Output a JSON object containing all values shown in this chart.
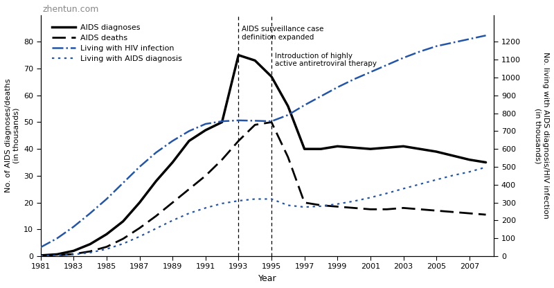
{
  "xlabel": "Year",
  "ylabel_left": "No. of AIDS diagnoses/deaths\n(in thousands)",
  "ylabel_right": "No. living with AIDS diagnosis/HIV infection\n(in thousands)",
  "watermark": "zhentun.com",
  "vline1_x": 1993,
  "vline1_label": "AIDS surveillance case\ndefinition expanded",
  "vline2_x": 1995,
  "vline2_label": "Introduction of highly\nactive antiretroviral therapy",
  "ylim_left": [
    0,
    90
  ],
  "ylim_right": [
    0,
    1350
  ],
  "yticks_left": [
    0,
    10,
    20,
    30,
    40,
    50,
    60,
    70,
    80
  ],
  "yticks_right": [
    0,
    100,
    200,
    300,
    400,
    500,
    600,
    700,
    800,
    900,
    1000,
    1100,
    1200
  ],
  "xticks": [
    1981,
    1983,
    1985,
    1987,
    1989,
    1991,
    1993,
    1995,
    1997,
    1999,
    2001,
    2003,
    2005,
    2007
  ],
  "xlim": [
    1981,
    2008.5
  ],
  "aids_diagnoses_years": [
    1981,
    1982,
    1983,
    1984,
    1985,
    1986,
    1987,
    1988,
    1989,
    1990,
    1991,
    1992,
    1993,
    1994,
    1995,
    1996,
    1997,
    1998,
    1999,
    2000,
    2001,
    2002,
    2003,
    2004,
    2005,
    2006,
    2007,
    2008
  ],
  "aids_diagnoses_values": [
    0.3,
    0.7,
    2.0,
    4.5,
    8.2,
    13.0,
    20.0,
    28.0,
    35.0,
    43.0,
    47.0,
    50.0,
    75.0,
    73.0,
    67.0,
    56.0,
    40.0,
    40.0,
    41.0,
    40.5,
    40.0,
    40.5,
    41.0,
    40.0,
    39.0,
    37.5,
    36.0,
    35.0
  ],
  "aids_deaths_years": [
    1981,
    1982,
    1983,
    1984,
    1985,
    1986,
    1987,
    1988,
    1989,
    1990,
    1991,
    1992,
    1993,
    1994,
    1995,
    1996,
    1997,
    1998,
    1999,
    2000,
    2001,
    2002,
    2003,
    2004,
    2005,
    2006,
    2007,
    2008
  ],
  "aids_deaths_values": [
    0.1,
    0.3,
    0.8,
    1.8,
    3.5,
    6.5,
    10.5,
    15.0,
    20.0,
    25.0,
    30.0,
    36.0,
    43.0,
    49.0,
    50.0,
    37.0,
    20.0,
    19.0,
    18.5,
    18.0,
    17.5,
    17.5,
    18.0,
    17.5,
    17.0,
    16.5,
    16.0,
    15.5
  ],
  "hiv_living_years": [
    1981,
    1982,
    1983,
    1984,
    1985,
    1986,
    1987,
    1988,
    1989,
    1990,
    1991,
    1992,
    1993,
    1994,
    1995,
    1996,
    1997,
    1998,
    1999,
    2000,
    2001,
    2002,
    2003,
    2004,
    2005,
    2006,
    2007,
    2008
  ],
  "hiv_living_values": [
    50,
    100,
    165,
    240,
    320,
    410,
    500,
    580,
    645,
    700,
    740,
    755,
    760,
    758,
    755,
    790,
    845,
    895,
    945,
    990,
    1030,
    1070,
    1110,
    1145,
    1175,
    1195,
    1215,
    1235
  ],
  "aids_living_years": [
    1981,
    1982,
    1983,
    1984,
    1985,
    1986,
    1987,
    1988,
    1989,
    1990,
    1991,
    1992,
    1993,
    1994,
    1995,
    1996,
    1997,
    1998,
    1999,
    2000,
    2001,
    2002,
    2003,
    2004,
    2005,
    2006,
    2007,
    2008
  ],
  "aids_living_values": [
    2,
    5,
    10,
    20,
    40,
    70,
    110,
    155,
    200,
    240,
    270,
    295,
    310,
    320,
    320,
    285,
    275,
    280,
    292,
    308,
    328,
    352,
    378,
    403,
    428,
    452,
    472,
    498
  ],
  "color_black": "#000000",
  "color_blue": "#2255AA",
  "lw_diag": 2.5,
  "lw_deaths": 2.0,
  "lw_hiv": 1.8,
  "lw_aids_living": 1.6
}
